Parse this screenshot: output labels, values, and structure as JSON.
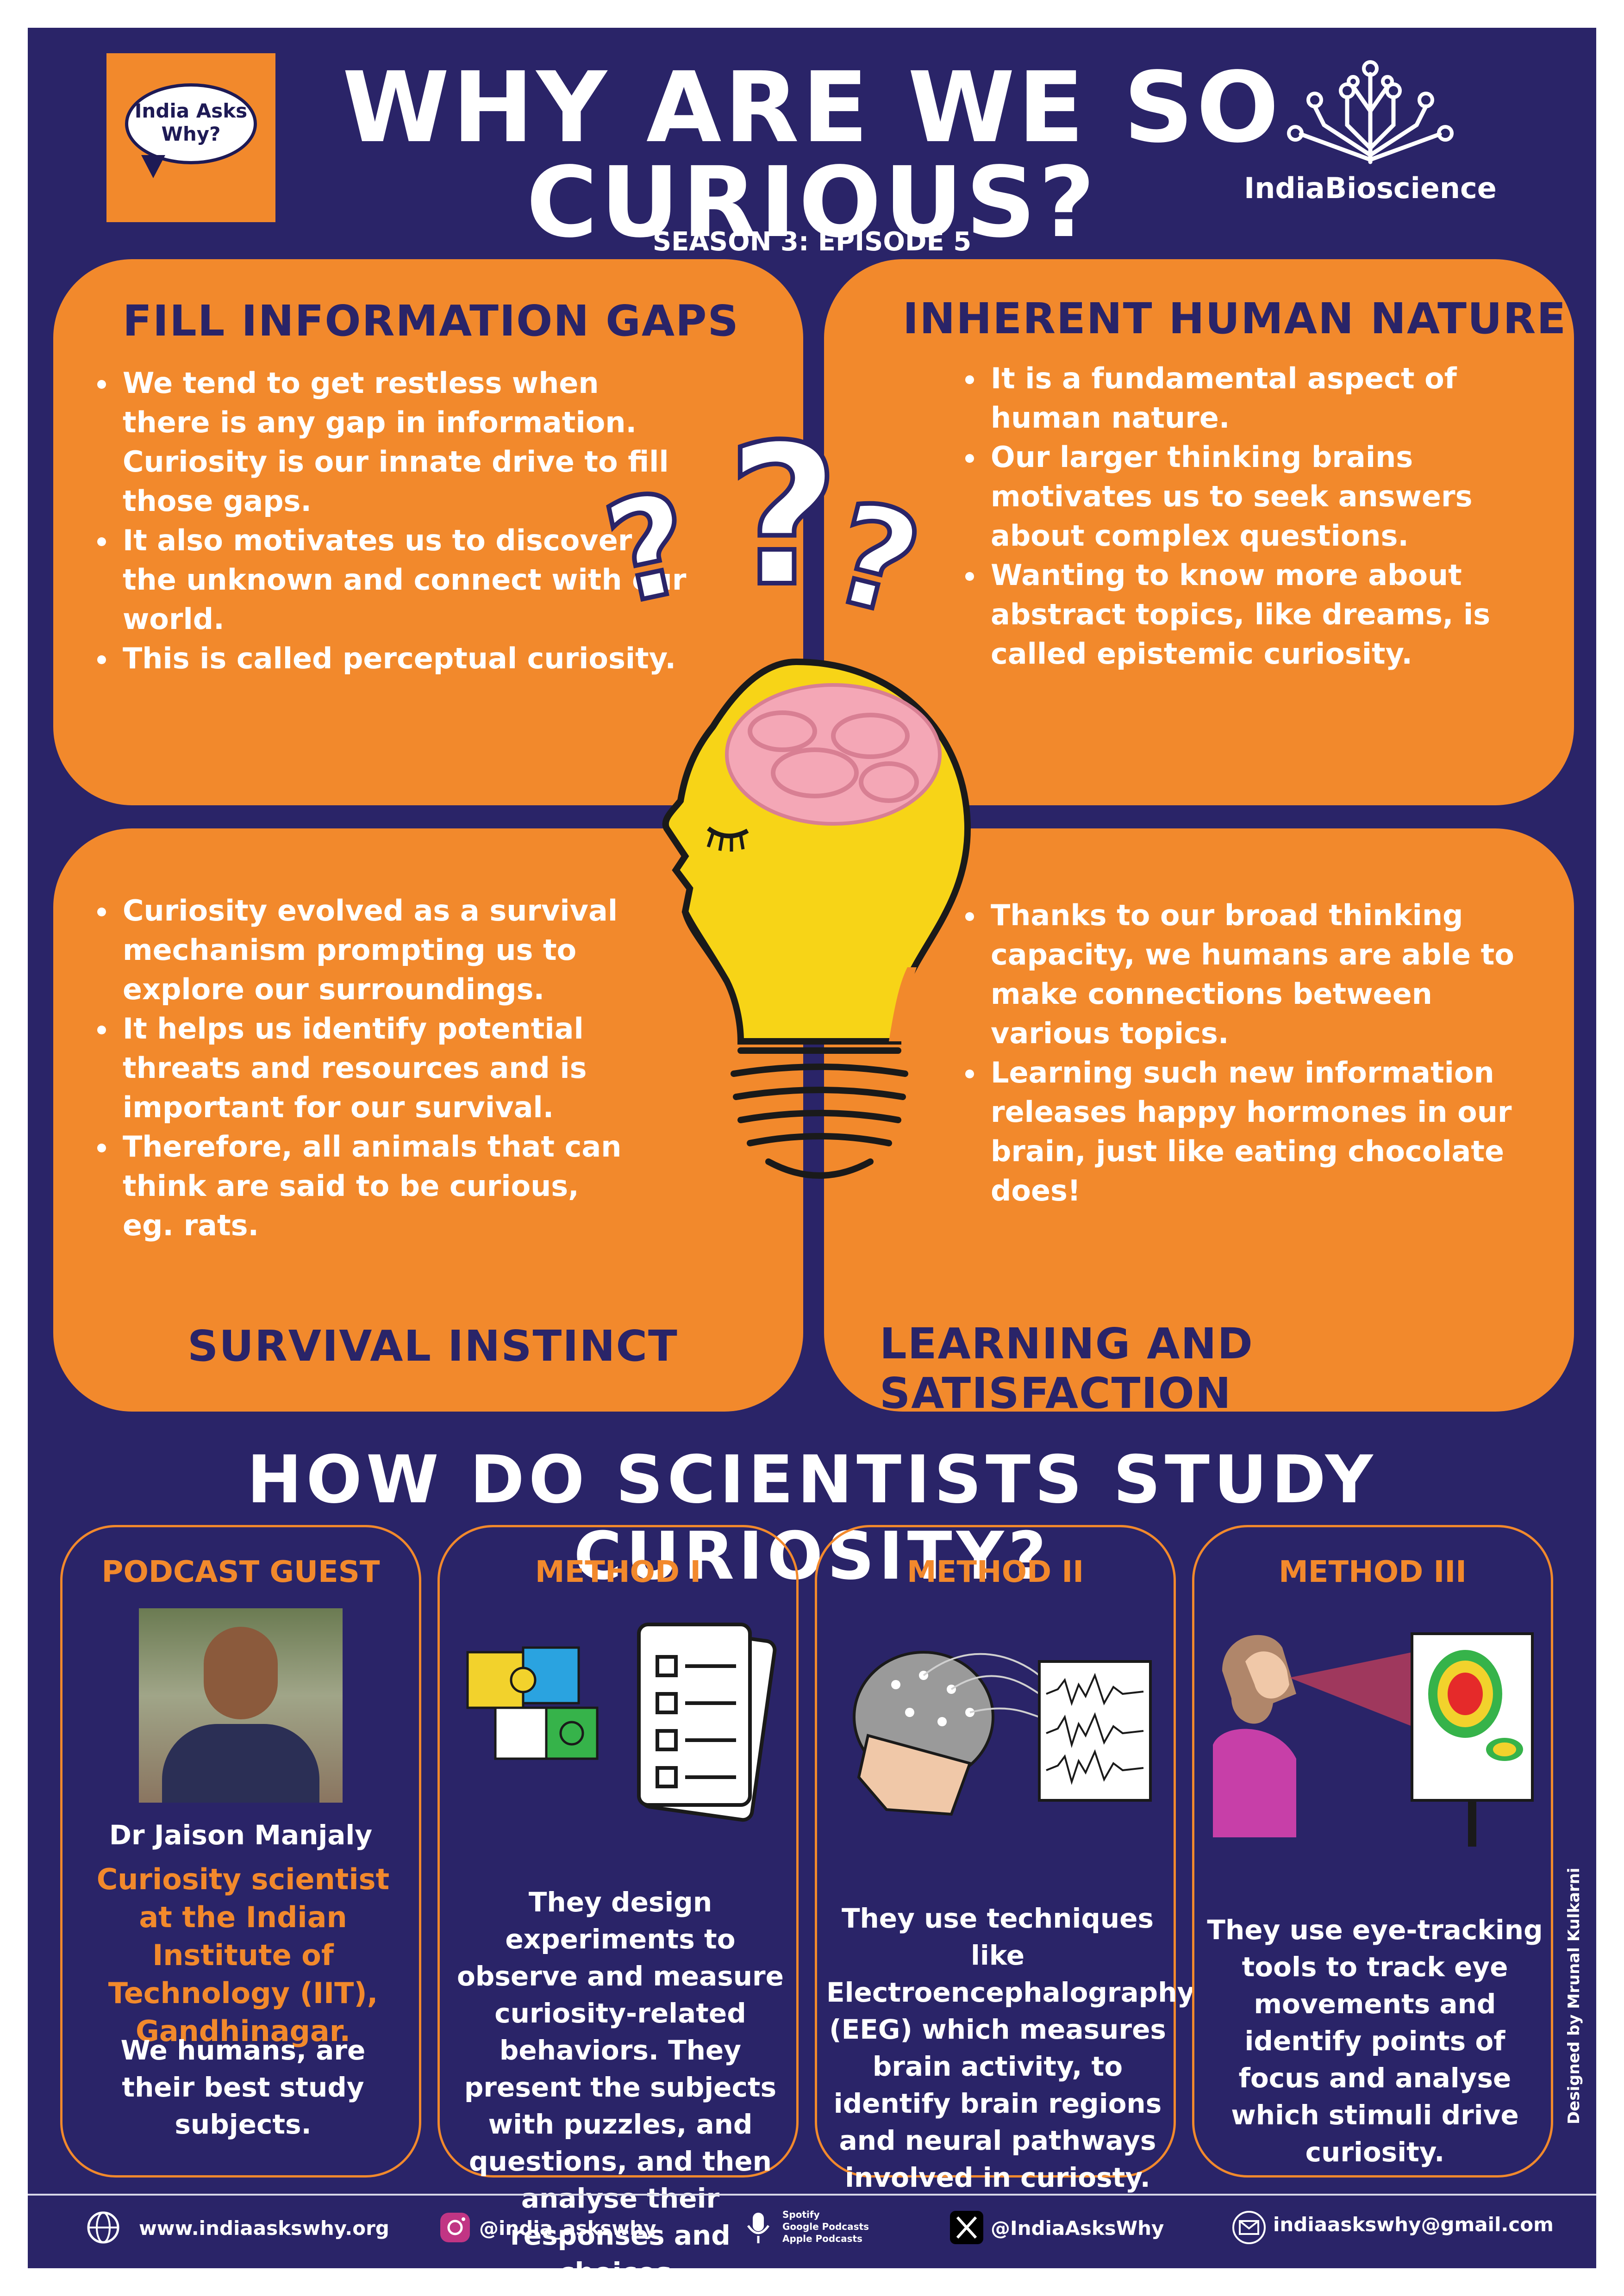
{
  "header": {
    "title_line1": "WHY ARE WE SO",
    "title_line2": "CURIOUS?",
    "subtitle": "SEASON 3: EPISODE 5",
    "logo_left_text": "India Asks Why?",
    "logo_right_text": "IndiaBioscience"
  },
  "quadrants": {
    "q1": {
      "title": "FILL INFORMATION GAPS",
      "bullets": [
        "We tend to get restless when there is any gap in information. Curiosity is our innate drive to fill those gaps.",
        "It also motivates us to discover the unknown and connect with our world.",
        "This is called perceptual curiosity."
      ]
    },
    "q2": {
      "title": "INHERENT HUMAN NATURE",
      "bullets": [
        "It is a fundamental aspect of human nature.",
        "Our larger thinking brains motivates us to seek answers about complex questions.",
        "Wanting to know more about abstract topics, like dreams, is called epistemic curiosity."
      ]
    },
    "q3": {
      "title": "SURVIVAL INSTINCT",
      "bullets": [
        "Curiosity evolved as a survival mechanism prompting us to explore our surroundings.",
        "It helps us identify potential threats and resources and is important for our survival.",
        "Therefore, all animals that can think are said to be curious, eg. rats."
      ]
    },
    "q4": {
      "title": "LEARNING AND SATISFACTION",
      "bullets": [
        "Thanks to our broad thinking capacity, we humans are able to make connections between various topics.",
        "Learning such new information releases happy hormones in our brain, just like eating chocolate does!"
      ]
    }
  },
  "section2": {
    "title": "HOW DO SCIENTISTS STUDY CURIOSITY?",
    "cards": [
      {
        "head": "PODCAST GUEST",
        "name": "Dr Jaison Manjaly",
        "role": "Curiosity scientist at the Indian Institute of Technology (IIT), Gandhinagar.",
        "text": "We humans, are their best study subjects."
      },
      {
        "head": "METHOD I",
        "text": "They design experiments to observe and measure curiosity-related behaviors. They present the subjects with puzzles, and questions, and then analyse their responses and choices."
      },
      {
        "head": "METHOD II",
        "text": "They use techniques like Electroencephalography (EEG) which measures brain activity, to identify brain regions and neural pathways involved in curiosty."
      },
      {
        "head": "METHOD III",
        "text": "They use eye-tracking tools to track eye movements and identify points of focus and analyse which stimuli drive curiosity."
      }
    ]
  },
  "footer": {
    "website": "www.indiaaskswhy.org",
    "instagram": "@india_askswhy",
    "podcast_line1": "Spotify",
    "podcast_line2": "Google Podcasts",
    "podcast_line3": "Apple Podcasts",
    "x_handle": "@IndiaAsksWhy",
    "email": "indiaaskswhy@gmail.com"
  },
  "designer_credit": "Designed by Mrunal Kulkarni",
  "colors": {
    "background": "#2a2468",
    "accent_orange": "#f2892c",
    "bulb_yellow": "#f7d417",
    "brain_pink": "#f4a7b6"
  },
  "icons": [
    "question-marks-icon",
    "lightbulb-head-icon",
    "brain-icon",
    "puzzle-icon",
    "checklist-icon",
    "eeg-head-icon",
    "eeg-wave-icon",
    "eye-tracking-icon",
    "heatmap-icon",
    "globe-icon",
    "instagram-icon",
    "microphone-icon",
    "x-icon",
    "mail-icon",
    "tree-logo-icon"
  ]
}
